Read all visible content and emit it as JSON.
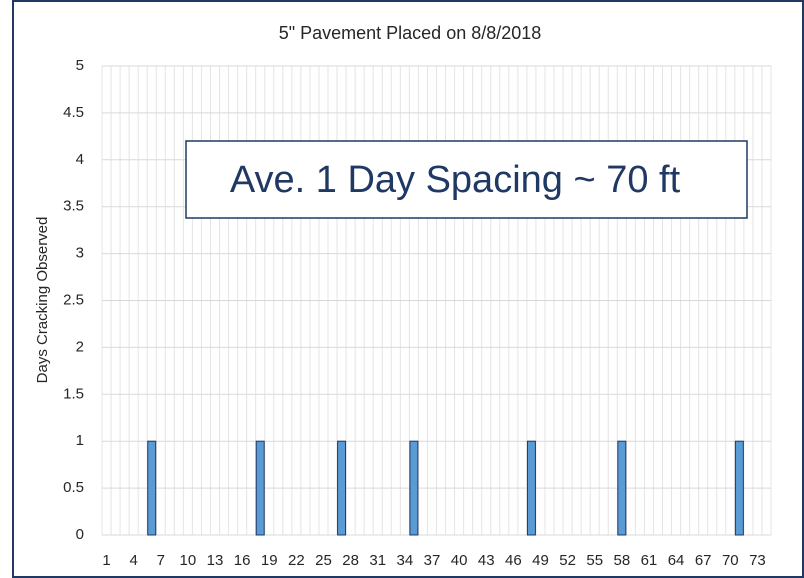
{
  "chart_data": {
    "type": "bar",
    "title": "5\" Pavement Placed on 8/8/2018",
    "y_label": "Days Cracking Observed",
    "annotation": "Ave. 1 Day Spacing ~ 70 ft",
    "categories": [
      1,
      null,
      null,
      4,
      null,
      null,
      7,
      null,
      null,
      10,
      null,
      null,
      13,
      null,
      null,
      16,
      null,
      null,
      19,
      null,
      null,
      22,
      null,
      null,
      25,
      null,
      null,
      28,
      null,
      null,
      31,
      null,
      null,
      34,
      null,
      null,
      37,
      null,
      null,
      40,
      null,
      null,
      43,
      null,
      null,
      46,
      null,
      null,
      49,
      null,
      null,
      52,
      null,
      null,
      55,
      null,
      null,
      58,
      null,
      null,
      61,
      null,
      null,
      64,
      null,
      null,
      67,
      null,
      null,
      70,
      null,
      null,
      73,
      null
    ],
    "values": [
      0,
      0,
      0,
      0,
      0,
      1,
      0,
      0,
      0,
      0,
      0,
      0,
      0,
      0,
      0,
      0,
      0,
      1,
      0,
      0,
      0,
      0,
      0,
      0,
      0,
      0,
      1,
      0,
      0,
      0,
      0,
      0,
      0,
      0,
      1,
      0,
      0,
      0,
      0,
      0,
      0,
      0,
      0,
      0,
      0,
      0,
      0,
      1,
      0,
      0,
      0,
      0,
      0,
      0,
      0,
      0,
      0,
      1,
      0,
      0,
      0,
      0,
      0,
      0,
      0,
      0,
      0,
      0,
      0,
      0,
      1,
      0,
      0,
      0
    ],
    "color": "#5b9bd5",
    "ylim": [
      0,
      5
    ],
    "yticks": [
      0,
      0.5,
      1,
      1.5,
      2,
      2.5,
      3,
      3.5,
      4,
      4.5,
      5
    ],
    "grid": true
  }
}
